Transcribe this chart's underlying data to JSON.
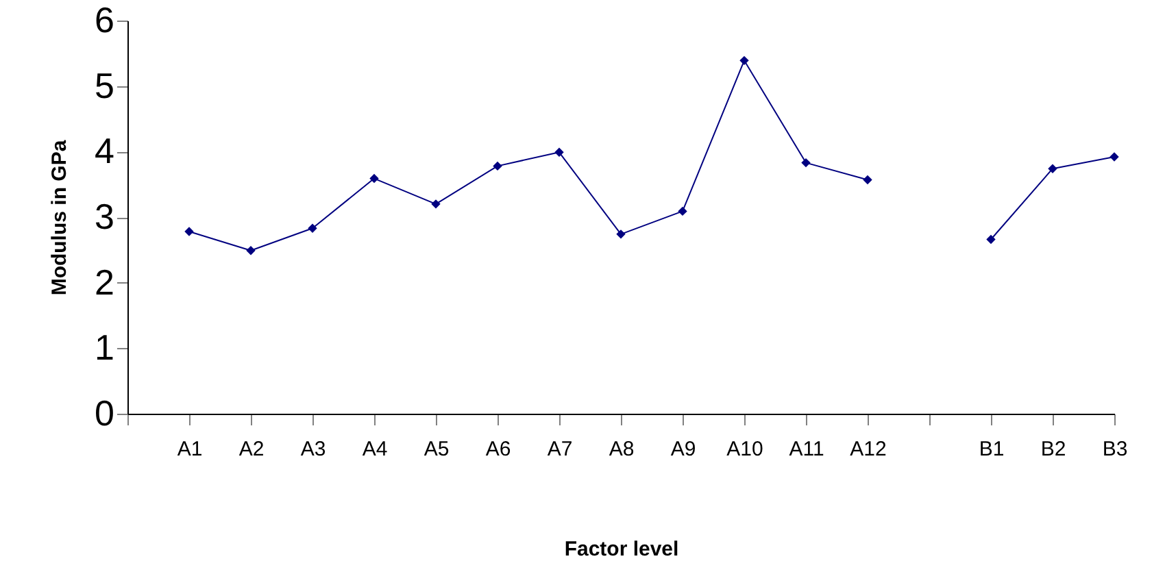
{
  "chart_data": {
    "type": "line",
    "xlabel": "Factor level",
    "ylabel": "Modulus in GPa",
    "categories": [
      null,
      "A1",
      "A2",
      "A3",
      "A4",
      "A5",
      "A6",
      "A7",
      "A8",
      "A9",
      "A10",
      "A11",
      "A12",
      null,
      "B1",
      "B2",
      "B3"
    ],
    "series": [
      {
        "color": "#000080",
        "values": [
          null,
          2.78,
          2.49,
          2.83,
          3.59,
          3.2,
          3.78,
          3.99,
          2.74,
          3.09,
          5.39,
          3.83,
          3.57,
          null,
          2.66,
          3.74,
          3.92
        ]
      }
    ],
    "ylim": [
      0,
      6
    ],
    "yticks": [
      0,
      1,
      2,
      3,
      4,
      5,
      6
    ],
    "grid": false,
    "marker": "diamond",
    "line_style": "solid"
  }
}
